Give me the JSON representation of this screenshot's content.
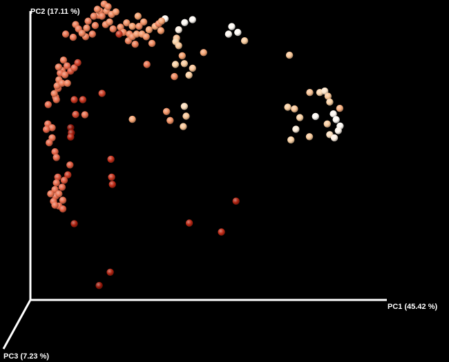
{
  "chart_data": {
    "type": "scatter",
    "title": "",
    "axes": {
      "x": {
        "label": "PC1 (45.42 %)",
        "range": [
          0,
          100
        ]
      },
      "y": {
        "label": "PC2 (17.11 %)",
        "range": [
          0,
          100
        ]
      },
      "z": {
        "label": "PC3 (7.23 %)"
      }
    },
    "grid": false,
    "legend": "none",
    "colors": {
      "background": "#000000",
      "axis": "#ffffff",
      "low": "#7a0a00",
      "high": "#ffffff"
    },
    "points": [
      {
        "x": 17.4,
        "y": 92.0,
        "v": 0.46
      },
      {
        "x": 18.2,
        "y": 95.0,
        "v": 0.47
      },
      {
        "x": 19.1,
        "y": 98.5,
        "v": 0.48
      },
      {
        "x": 19.5,
        "y": 100.0,
        "v": 0.49
      },
      {
        "x": 17.8,
        "y": 98.2,
        "v": 0.47
      },
      {
        "x": 18.8,
        "y": 100.6,
        "v": 0.5
      },
      {
        "x": 20.1,
        "y": 98.2,
        "v": 0.48
      },
      {
        "x": 21.1,
        "y": 95.3,
        "v": 0.5
      },
      {
        "x": 22.2,
        "y": 96.2,
        "v": 0.53
      },
      {
        "x": 21.4,
        "y": 100.0,
        "v": 0.52
      },
      {
        "x": 20.7,
        "y": 102.4,
        "v": 0.49
      },
      {
        "x": 21.8,
        "y": 101.5,
        "v": 0.5
      },
      {
        "x": 22.8,
        "y": 98.8,
        "v": 0.52
      },
      {
        "x": 24.0,
        "y": 99.7,
        "v": 0.56
      },
      {
        "x": 25.3,
        "y": 94.4,
        "v": 0.53
      },
      {
        "x": 26.1,
        "y": 92.6,
        "v": 0.49
      },
      {
        "x": 24.9,
        "y": 92.0,
        "v": 0.25
      },
      {
        "x": 23.2,
        "y": 93.8,
        "v": 0.48
      },
      {
        "x": 27.0,
        "y": 95.9,
        "v": 0.55
      },
      {
        "x": 27.8,
        "y": 92.0,
        "v": 0.5
      },
      {
        "x": 27.5,
        "y": 89.7,
        "v": 0.49
      },
      {
        "x": 28.6,
        "y": 91.1,
        "v": 0.52
      },
      {
        "x": 29.4,
        "y": 88.5,
        "v": 0.48
      },
      {
        "x": 29.8,
        "y": 92.0,
        "v": 0.57
      },
      {
        "x": 28.6,
        "y": 94.7,
        "v": 0.59
      },
      {
        "x": 30.5,
        "y": 94.7,
        "v": 0.52
      },
      {
        "x": 31.8,
        "y": 96.2,
        "v": 0.56
      },
      {
        "x": 31.3,
        "y": 92.0,
        "v": 0.57
      },
      {
        "x": 30.2,
        "y": 98.2,
        "v": 0.6
      },
      {
        "x": 32.5,
        "y": 91.1,
        "v": 0.55
      },
      {
        "x": 33.3,
        "y": 93.5,
        "v": 0.6
      },
      {
        "x": 34.1,
        "y": 88.8,
        "v": 0.53
      },
      {
        "x": 35.0,
        "y": 94.7,
        "v": 0.62
      },
      {
        "x": 36.0,
        "y": 95.6,
        "v": 0.5
      },
      {
        "x": 36.6,
        "y": 93.2,
        "v": 0.58
      },
      {
        "x": 37.8,
        "y": 97.3,
        "v": 0.97
      },
      {
        "x": 36.8,
        "y": 96.5,
        "v": 0.6
      },
      {
        "x": 41.0,
        "y": 90.6,
        "v": 0.72
      },
      {
        "x": 15.5,
        "y": 91.1,
        "v": 0.48
      },
      {
        "x": 9.9,
        "y": 92.0,
        "v": 0.45
      },
      {
        "x": 12.0,
        "y": 90.9,
        "v": 0.46
      },
      {
        "x": 12.7,
        "y": 95.3,
        "v": 0.48
      },
      {
        "x": 13.5,
        "y": 93.8,
        "v": 0.46
      },
      {
        "x": 15.8,
        "y": 94.1,
        "v": 0.5
      },
      {
        "x": 14.5,
        "y": 92.3,
        "v": 0.49
      },
      {
        "x": 16.2,
        "y": 96.5,
        "v": 0.47
      },
      {
        "x": 9.3,
        "y": 83.0,
        "v": 0.46
      },
      {
        "x": 8.9,
        "y": 79.4,
        "v": 0.45
      },
      {
        "x": 8.0,
        "y": 76.2,
        "v": 0.47
      },
      {
        "x": 7.8,
        "y": 73.2,
        "v": 0.43
      },
      {
        "x": 7.1,
        "y": 70.2,
        "v": 0.44
      },
      {
        "x": 8.4,
        "y": 78.5,
        "v": 0.42
      },
      {
        "x": 7.5,
        "y": 74.1,
        "v": 0.46
      },
      {
        "x": 6.7,
        "y": 71.4,
        "v": 0.47
      },
      {
        "x": 7.3,
        "y": 69.3,
        "v": 0.43
      },
      {
        "x": 8.9,
        "y": 75.0,
        "v": 0.47
      },
      {
        "x": 9.7,
        "y": 77.9,
        "v": 0.45
      },
      {
        "x": 10.3,
        "y": 81.0,
        "v": 0.41
      },
      {
        "x": 7.9,
        "y": 80.6,
        "v": 0.46
      },
      {
        "x": 10.4,
        "y": 75.0,
        "v": 0.48
      },
      {
        "x": 11.3,
        "y": 79.2,
        "v": 0.34
      },
      {
        "x": 12.3,
        "y": 80.3,
        "v": 0.38
      },
      {
        "x": 13.3,
        "y": 82.1,
        "v": 0.27
      },
      {
        "x": 12.3,
        "y": 69.3,
        "v": 0.24
      },
      {
        "x": 14.7,
        "y": 69.3,
        "v": 0.24
      },
      {
        "x": 20.1,
        "y": 71.5,
        "v": 0.28
      },
      {
        "x": 15.3,
        "y": 64.1,
        "v": 0.43
      },
      {
        "x": 12.7,
        "y": 64.2,
        "v": 0.3
      },
      {
        "x": 5.0,
        "y": 67.6,
        "v": 0.41
      },
      {
        "x": 4.9,
        "y": 60.9,
        "v": 0.41
      },
      {
        "x": 6.1,
        "y": 59.6,
        "v": 0.43
      },
      {
        "x": 11.3,
        "y": 59.6,
        "v": 0.05
      },
      {
        "x": 11.5,
        "y": 57.8,
        "v": 0.1
      },
      {
        "x": 11.3,
        "y": 56.4,
        "v": 0.18
      },
      {
        "x": 4.5,
        "y": 59.0,
        "v": 0.4
      },
      {
        "x": 6.1,
        "y": 56.1,
        "v": 0.45
      },
      {
        "x": 5.3,
        "y": 54.4,
        "v": 0.41
      },
      {
        "x": 6.9,
        "y": 51.3,
        "v": 0.39
      },
      {
        "x": 7.3,
        "y": 49.3,
        "v": 0.41
      },
      {
        "x": 11.1,
        "y": 46.7,
        "v": 0.36
      },
      {
        "x": 22.6,
        "y": 48.7,
        "v": 0.22
      },
      {
        "x": 22.8,
        "y": 42.5,
        "v": 0.24
      },
      {
        "x": 23.0,
        "y": 40.0,
        "v": 0.2
      },
      {
        "x": 10.5,
        "y": 43.3,
        "v": 0.25
      },
      {
        "x": 9.5,
        "y": 41.4,
        "v": 0.35
      },
      {
        "x": 7.7,
        "y": 42.5,
        "v": 0.33
      },
      {
        "x": 7.3,
        "y": 40.5,
        "v": 0.42
      },
      {
        "x": 8.9,
        "y": 39.0,
        "v": 0.4
      },
      {
        "x": 6.9,
        "y": 38.2,
        "v": 0.43
      },
      {
        "x": 7.1,
        "y": 35.9,
        "v": 0.41
      },
      {
        "x": 8.0,
        "y": 36.7,
        "v": 0.44
      },
      {
        "x": 9.1,
        "y": 34.5,
        "v": 0.43
      },
      {
        "x": 6.5,
        "y": 34.1,
        "v": 0.41
      },
      {
        "x": 8.0,
        "y": 32.5,
        "v": 0.41
      },
      {
        "x": 9.1,
        "y": 31.5,
        "v": 0.37
      },
      {
        "x": 6.9,
        "y": 32.8,
        "v": 0.42
      },
      {
        "x": 5.7,
        "y": 36.7,
        "v": 0.44
      },
      {
        "x": 12.3,
        "y": 26.4,
        "v": 0.14
      },
      {
        "x": 57.7,
        "y": 34.2,
        "v": 0.15
      },
      {
        "x": 44.6,
        "y": 26.6,
        "v": 0.18
      },
      {
        "x": 53.6,
        "y": 23.5,
        "v": 0.2
      },
      {
        "x": 22.4,
        "y": 9.6,
        "v": 0.15
      },
      {
        "x": 19.3,
        "y": 5.0,
        "v": 0.08
      },
      {
        "x": 32.7,
        "y": 81.5,
        "v": 0.45
      },
      {
        "x": 40.4,
        "y": 77.3,
        "v": 0.52
      },
      {
        "x": 38.2,
        "y": 65.2,
        "v": 0.56
      },
      {
        "x": 28.6,
        "y": 62.5,
        "v": 0.62
      },
      {
        "x": 40.8,
        "y": 89.4,
        "v": 0.8
      },
      {
        "x": 41.6,
        "y": 93.5,
        "v": 0.94
      },
      {
        "x": 43.3,
        "y": 96.0,
        "v": 0.98
      },
      {
        "x": 45.5,
        "y": 97.0,
        "v": 0.98
      },
      {
        "x": 41.6,
        "y": 88.0,
        "v": 0.75
      },
      {
        "x": 42.6,
        "y": 84.5,
        "v": 0.6
      },
      {
        "x": 48.6,
        "y": 85.6,
        "v": 0.62
      },
      {
        "x": 40.7,
        "y": 81.5,
        "v": 0.8
      },
      {
        "x": 43.2,
        "y": 81.8,
        "v": 0.77
      },
      {
        "x": 45.5,
        "y": 80.2,
        "v": 0.74
      },
      {
        "x": 44.5,
        "y": 77.8,
        "v": 0.78
      },
      {
        "x": 43.2,
        "y": 67.0,
        "v": 0.85
      },
      {
        "x": 43.7,
        "y": 63.6,
        "v": 0.75
      },
      {
        "x": 39.2,
        "y": 62.1,
        "v": 0.55
      },
      {
        "x": 42.9,
        "y": 60.0,
        "v": 0.75
      },
      {
        "x": 56.5,
        "y": 94.6,
        "v": 0.98
      },
      {
        "x": 58.2,
        "y": 92.6,
        "v": 0.98
      },
      {
        "x": 55.6,
        "y": 92.0,
        "v": 0.97
      },
      {
        "x": 60.1,
        "y": 89.7,
        "v": 0.78
      },
      {
        "x": 72.7,
        "y": 84.7,
        "v": 0.75
      },
      {
        "x": 78.4,
        "y": 71.8,
        "v": 0.74
      },
      {
        "x": 81.2,
        "y": 71.8,
        "v": 0.82
      },
      {
        "x": 82.6,
        "y": 72.3,
        "v": 0.88
      },
      {
        "x": 83.5,
        "y": 70.5,
        "v": 0.75
      },
      {
        "x": 84.0,
        "y": 68.5,
        "v": 0.8
      },
      {
        "x": 86.8,
        "y": 66.3,
        "v": 0.66
      },
      {
        "x": 85.0,
        "y": 64.4,
        "v": 0.97
      },
      {
        "x": 85.8,
        "y": 62.4,
        "v": 0.98
      },
      {
        "x": 86.9,
        "y": 60.2,
        "v": 0.98
      },
      {
        "x": 86.4,
        "y": 58.6,
        "v": 0.96
      },
      {
        "x": 83.3,
        "y": 60.9,
        "v": 0.78
      },
      {
        "x": 84.0,
        "y": 57.2,
        "v": 0.86
      },
      {
        "x": 85.3,
        "y": 56.1,
        "v": 0.94
      },
      {
        "x": 80.0,
        "y": 63.5,
        "v": 0.98
      },
      {
        "x": 78.3,
        "y": 56.5,
        "v": 0.77
      },
      {
        "x": 75.6,
        "y": 63.1,
        "v": 0.8
      },
      {
        "x": 74.1,
        "y": 66.1,
        "v": 0.75
      },
      {
        "x": 72.2,
        "y": 66.7,
        "v": 0.79
      },
      {
        "x": 74.5,
        "y": 59.1,
        "v": 0.92
      },
      {
        "x": 73.1,
        "y": 55.4,
        "v": 0.8
      }
    ]
  }
}
